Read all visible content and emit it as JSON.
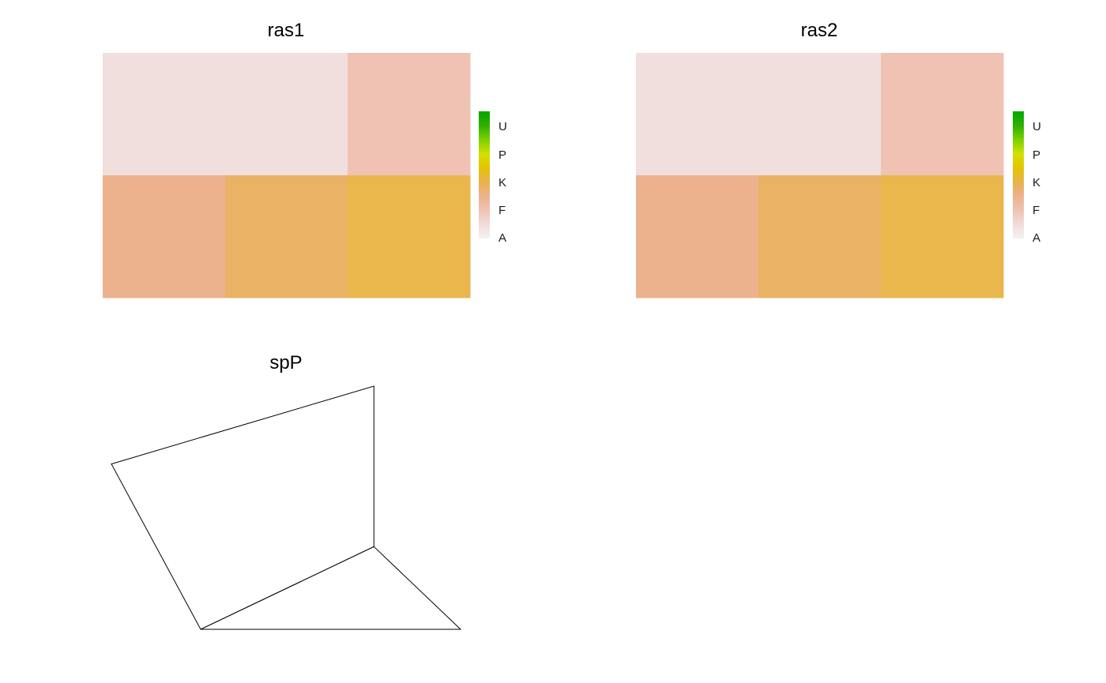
{
  "chart_data": [
    {
      "type": "heatmap",
      "title": "ras1",
      "nrows": 2,
      "ncols": 3,
      "cells": [
        [
          "A",
          "A",
          "F"
        ],
        [
          "F",
          "K",
          "K"
        ]
      ],
      "legend": {
        "labels": [
          "U",
          "P",
          "K",
          "F",
          "A"
        ],
        "placement": "right"
      }
    },
    {
      "type": "heatmap",
      "title": "ras2",
      "nrows": 2,
      "ncols": 3,
      "cells": [
        [
          "A",
          "A",
          "F"
        ],
        [
          "F",
          "K",
          "K"
        ]
      ],
      "legend": {
        "labels": [
          "U",
          "P",
          "K",
          "F",
          "A"
        ],
        "placement": "right"
      }
    },
    {
      "type": "polygon",
      "title": "spP",
      "polygons": [
        {
          "name": "polygon-1",
          "vertices": [
            [
              0.0,
              0.68
            ],
            [
              1.0,
              1.0
            ],
            [
              1.0,
              0.34
            ],
            [
              0.34,
              0.0
            ]
          ]
        },
        {
          "name": "polygon-2",
          "vertices": [
            [
              0.34,
              0.0
            ],
            [
              1.0,
              0.34
            ],
            [
              1.33,
              0.0
            ]
          ]
        }
      ]
    }
  ],
  "colors": {
    "cell_r1c1": "#f1dfdd",
    "cell_r1c2": "#f1dfdd",
    "cell_r1c3": "#f0c2b3",
    "cell_r2c1": "#ecb28d",
    "cell_r2c2": "#eab264",
    "cell_r2c3": "#e9b74c",
    "legend_gradient": [
      "#f2f2f2",
      "#f0dcda",
      "#eec3b3",
      "#ebb28a",
      "#e8b24d",
      "#e5c400",
      "#d2e000",
      "#7ad000",
      "#30b000",
      "#00a600"
    ],
    "line": "#000000"
  }
}
